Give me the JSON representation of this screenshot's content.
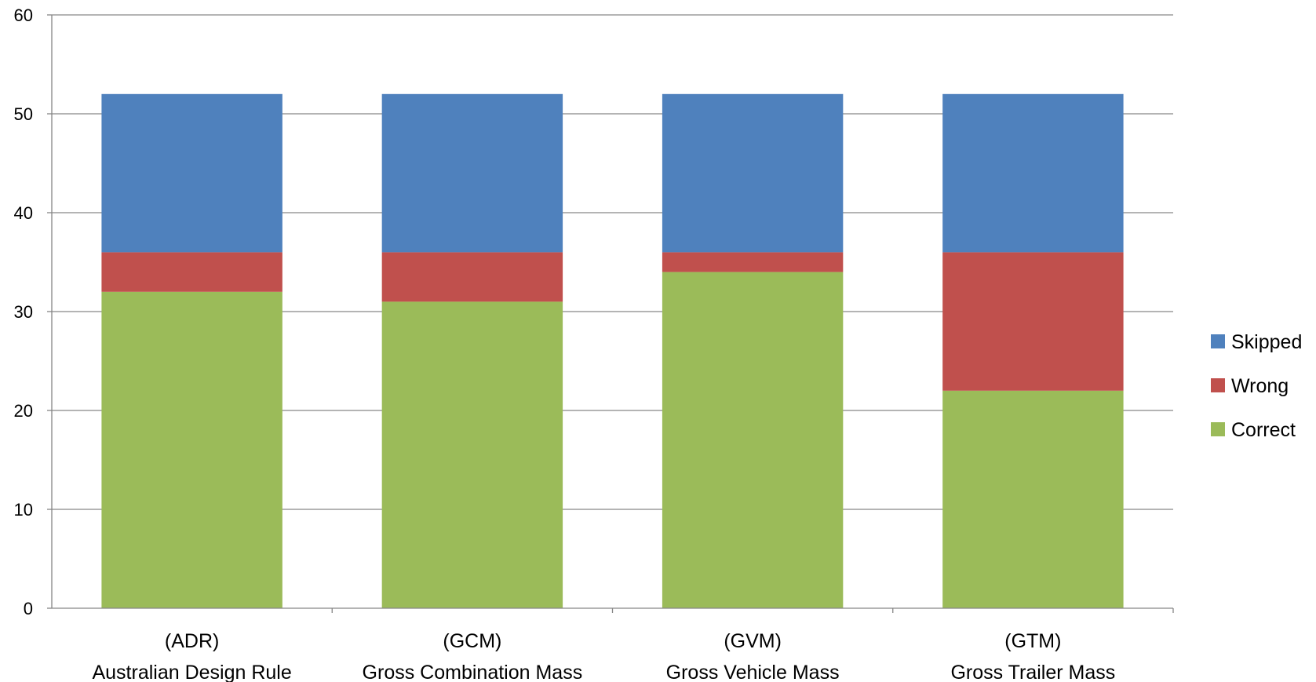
{
  "chart_data": {
    "type": "bar",
    "stacked": true,
    "title": "",
    "xlabel": "",
    "ylabel": "",
    "ylim": [
      0,
      60
    ],
    "yticks": [
      0,
      10,
      20,
      30,
      40,
      50,
      60
    ],
    "grid": true,
    "legend_position": "right",
    "categories": [
      [
        "(ADR)",
        "Australian Design Rule"
      ],
      [
        "(GCM)",
        "Gross Combination Mass"
      ],
      [
        "(GVM)",
        "Gross Vehicle Mass"
      ],
      [
        "(GTM)",
        "Gross Trailer Mass"
      ]
    ],
    "series": [
      {
        "name": "Correct",
        "color": "#9BBB59",
        "values": [
          32,
          31,
          34,
          22
        ]
      },
      {
        "name": "Wrong",
        "color": "#C0504D",
        "values": [
          4,
          5,
          2,
          14
        ]
      },
      {
        "name": "Skipped",
        "color": "#4F81BD",
        "values": [
          16,
          16,
          16,
          16
        ]
      }
    ],
    "legend_order": [
      "Skipped",
      "Wrong",
      "Correct"
    ]
  }
}
